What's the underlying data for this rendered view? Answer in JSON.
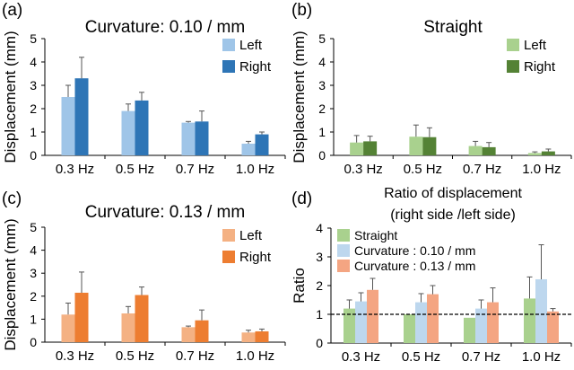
{
  "colors": {
    "left_blue": "#9fc5e8",
    "right_blue": "#2e75b6",
    "left_green": "#a9d18e",
    "right_green": "#548235",
    "left_orange": "#f4b183",
    "right_orange": "#ed7d31",
    "ratio_straight": "#a9d18e",
    "ratio_c010": "#bdd7ee",
    "ratio_c013": "#f4a582",
    "refline": "#000000"
  },
  "chart_data": [
    {
      "id": "a",
      "panel_label": "(a)",
      "type": "bar",
      "title": "Curvature: 0.10 / mm",
      "xlabel": "",
      "ylabel": "Displacement  (mm)",
      "ylim": [
        0,
        5
      ],
      "yticks": [
        "0",
        "1",
        "2",
        "3",
        "4",
        "5"
      ],
      "categories": [
        "0.3 Hz",
        "0.5 Hz",
        "0.7 Hz",
        "1.0 Hz"
      ],
      "legend_position": "top-right",
      "series": [
        {
          "name": "Left",
          "color": "#9fc5e8",
          "values": [
            2.5,
            1.9,
            1.4,
            0.5
          ],
          "errors": [
            0.5,
            0.3,
            0.05,
            0.1
          ]
        },
        {
          "name": "Right",
          "color": "#2e75b6",
          "values": [
            3.3,
            2.35,
            1.45,
            0.9
          ],
          "errors": [
            0.9,
            0.35,
            0.45,
            0.1
          ]
        }
      ]
    },
    {
      "id": "b",
      "panel_label": "(b)",
      "type": "bar",
      "title": "Straight",
      "xlabel": "",
      "ylabel": "Displacement  (mm)",
      "ylim": [
        0,
        5
      ],
      "yticks": [
        "0",
        "1",
        "2",
        "3",
        "4",
        "5"
      ],
      "categories": [
        "0.3 Hz",
        "0.5 Hz",
        "0.7 Hz",
        "1.0 Hz"
      ],
      "legend_position": "top-right",
      "series": [
        {
          "name": "Left",
          "color": "#a9d18e",
          "values": [
            0.55,
            0.8,
            0.4,
            0.1
          ],
          "errors": [
            0.3,
            0.5,
            0.2,
            0.05
          ]
        },
        {
          "name": "Right",
          "color": "#548235",
          "values": [
            0.6,
            0.78,
            0.35,
            0.17
          ],
          "errors": [
            0.22,
            0.4,
            0.2,
            0.1
          ]
        }
      ]
    },
    {
      "id": "c",
      "panel_label": "(c)",
      "type": "bar",
      "title": "Curvature: 0.13 / mm",
      "xlabel": "",
      "ylabel": "Displacement  (mm)",
      "ylim": [
        0,
        5
      ],
      "yticks": [
        "0",
        "1",
        "2",
        "3",
        "4",
        "5"
      ],
      "categories": [
        "0.3 Hz",
        "0.5 Hz",
        "0.7 Hz",
        "1.0 Hz"
      ],
      "legend_position": "top-right",
      "series": [
        {
          "name": "Left",
          "color": "#f4b183",
          "values": [
            1.2,
            1.25,
            0.65,
            0.42
          ],
          "errors": [
            0.5,
            0.3,
            0.05,
            0.1
          ]
        },
        {
          "name": "Right",
          "color": "#ed7d31",
          "values": [
            2.15,
            2.05,
            0.95,
            0.47
          ],
          "errors": [
            0.9,
            0.35,
            0.45,
            0.1
          ]
        }
      ]
    },
    {
      "id": "d",
      "panel_label": "(d)",
      "type": "bar",
      "title": "Ratio of displacement",
      "subtitle": "(right side /left side)",
      "xlabel": "",
      "ylabel": "Ratio",
      "ylim": [
        0,
        4
      ],
      "yticks": [
        "0",
        "1",
        "2",
        "3",
        "4"
      ],
      "reference_line": 1.0,
      "categories": [
        "0.3 Hz",
        "0.5 Hz",
        "0.7 Hz",
        "1.0 Hz"
      ],
      "legend_position": "top-left",
      "series": [
        {
          "name": "Straight",
          "color": "#a9d18e",
          "values": [
            1.2,
            1.0,
            0.88,
            1.55
          ],
          "errors": [
            0.3,
            0.0,
            0.0,
            0.75
          ]
        },
        {
          "name": "Curvature : 0.10 / mm",
          "color": "#bdd7ee",
          "values": [
            1.45,
            1.42,
            1.2,
            2.22
          ],
          "errors": [
            0.3,
            0.3,
            0.3,
            1.2
          ]
        },
        {
          "name": "Curvature : 0.13 / mm",
          "color": "#f4a582",
          "values": [
            1.85,
            1.7,
            1.42,
            1.1
          ],
          "errors": [
            0.4,
            0.3,
            0.5,
            0.1
          ]
        }
      ]
    }
  ]
}
